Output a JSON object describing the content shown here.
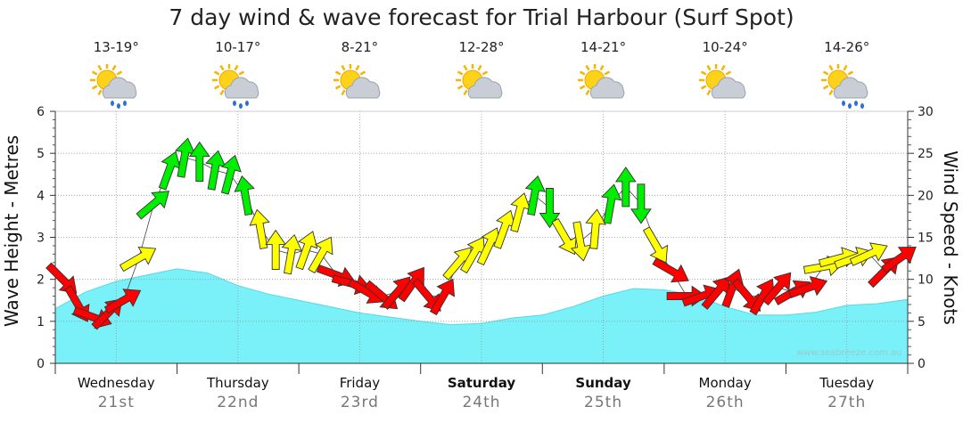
{
  "title": "7 day wind & wave forecast for Trial Harbour (Surf Spot)",
  "watermark": "www.seabreeze.com.au",
  "days": [
    {
      "day": "Wednesday",
      "date": "21st",
      "temp": "13-19°",
      "weather": "showers",
      "bold": false
    },
    {
      "day": "Thursday",
      "date": "22nd",
      "temp": "10-17°",
      "weather": "showers",
      "bold": false
    },
    {
      "day": "Friday",
      "date": "23rd",
      "temp": "8-21°",
      "weather": "partly-cloudy",
      "bold": false
    },
    {
      "day": "Saturday",
      "date": "24th",
      "temp": "12-28°",
      "weather": "partly-cloudy",
      "bold": true
    },
    {
      "day": "Sunday",
      "date": "25th",
      "temp": "14-21°",
      "weather": "partly-cloudy",
      "bold": true
    },
    {
      "day": "Monday",
      "date": "26th",
      "temp": "10-24°",
      "weather": "partly-cloudy",
      "bold": false
    },
    {
      "day": "Tuesday",
      "date": "27th",
      "temp": "14-26°",
      "weather": "rain",
      "bold": false
    }
  ],
  "chart_data": {
    "type": "area",
    "title": "7 day wind & wave forecast for Trial Harbour (Surf Spot)",
    "ylabel_left": "Wave Height - Metres",
    "ylabel_right": "Wind Speed - Knots",
    "ylim_left": [
      0,
      6
    ],
    "ylim_right": [
      0,
      30
    ],
    "yticks_left": [
      "0",
      "1",
      "2",
      "3",
      "4",
      "5",
      "6"
    ],
    "yticks_right": [
      "0",
      "5",
      "10",
      "15",
      "20",
      "25",
      "30"
    ],
    "x_range_days": [
      0,
      7
    ],
    "grid": true,
    "wave_color": "#7af0f8",
    "wind_colors": {
      "red": "#ff0000",
      "yellow": "#ffff00",
      "green": "#00ee00"
    },
    "wave_height": {
      "t": [
        0,
        0.25,
        0.5,
        0.75,
        1.0,
        1.25,
        1.5,
        1.75,
        2.0,
        2.25,
        2.5,
        2.75,
        3.0,
        3.25,
        3.5,
        3.75,
        4.0,
        4.25,
        4.5,
        4.75,
        5.0,
        5.25,
        5.5,
        5.75,
        6.0,
        6.25,
        6.5,
        6.75,
        7.0
      ],
      "m": [
        1.3,
        1.7,
        1.95,
        2.1,
        2.25,
        2.15,
        1.85,
        1.65,
        1.5,
        1.35,
        1.2,
        1.1,
        1.0,
        0.92,
        0.95,
        1.08,
        1.15,
        1.35,
        1.6,
        1.78,
        1.75,
        1.62,
        1.35,
        1.15,
        1.15,
        1.22,
        1.38,
        1.42,
        1.52
      ]
    },
    "wind": [
      {
        "t": 0.0,
        "kn": 10,
        "dir": 315,
        "color": "red"
      },
      {
        "t": 0.125,
        "kn": 7,
        "dir": 330,
        "color": "red"
      },
      {
        "t": 0.25,
        "kn": 5.5,
        "dir": 290,
        "color": "red"
      },
      {
        "t": 0.375,
        "kn": 6,
        "dir": 225,
        "color": "red"
      },
      {
        "t": 0.5,
        "kn": 7.5,
        "dir": 240,
        "color": "red"
      },
      {
        "t": 0.625,
        "kn": 12.5,
        "dir": 240,
        "color": "yellow"
      },
      {
        "t": 0.75,
        "kn": 19,
        "dir": 230,
        "color": "green"
      },
      {
        "t": 0.875,
        "kn": 23,
        "dir": 200,
        "color": "green"
      },
      {
        "t": 1.0,
        "kn": 24.5,
        "dir": 190,
        "color": "green"
      },
      {
        "t": 1.125,
        "kn": 24,
        "dir": 180,
        "color": "green"
      },
      {
        "t": 1.25,
        "kn": 23,
        "dir": 190,
        "color": "green"
      },
      {
        "t": 1.375,
        "kn": 22.5,
        "dir": 195,
        "color": "green"
      },
      {
        "t": 1.5,
        "kn": 20,
        "dir": 170,
        "color": "green"
      },
      {
        "t": 1.625,
        "kn": 16,
        "dir": 170,
        "color": "yellow"
      },
      {
        "t": 1.75,
        "kn": 13.5,
        "dir": 180,
        "color": "yellow"
      },
      {
        "t": 1.875,
        "kn": 13,
        "dir": 190,
        "color": "yellow"
      },
      {
        "t": 2.0,
        "kn": 13.5,
        "dir": 200,
        "color": "yellow"
      },
      {
        "t": 2.125,
        "kn": 13,
        "dir": 210,
        "color": "yellow"
      },
      {
        "t": 2.25,
        "kn": 10.5,
        "dir": 290,
        "color": "red"
      },
      {
        "t": 2.375,
        "kn": 9.5,
        "dir": 285,
        "color": "red"
      },
      {
        "t": 2.5,
        "kn": 8.5,
        "dir": 300,
        "color": "red"
      },
      {
        "t": 2.625,
        "kn": 8,
        "dir": 310,
        "color": "red"
      },
      {
        "t": 2.75,
        "kn": 8.5,
        "dir": 220,
        "color": "red"
      },
      {
        "t": 2.875,
        "kn": 9.5,
        "dir": 215,
        "color": "red"
      },
      {
        "t": 3.0,
        "kn": 8,
        "dir": 320,
        "color": "red"
      },
      {
        "t": 3.125,
        "kn": 8,
        "dir": 210,
        "color": "red"
      },
      {
        "t": 3.25,
        "kn": 12,
        "dir": 220,
        "color": "yellow"
      },
      {
        "t": 3.375,
        "kn": 13,
        "dir": 210,
        "color": "yellow"
      },
      {
        "t": 3.5,
        "kn": 14,
        "dir": 205,
        "color": "yellow"
      },
      {
        "t": 3.625,
        "kn": 16,
        "dir": 200,
        "color": "yellow"
      },
      {
        "t": 3.75,
        "kn": 18,
        "dir": 195,
        "color": "yellow"
      },
      {
        "t": 3.875,
        "kn": 20,
        "dir": 190,
        "color": "green"
      },
      {
        "t": 4.0,
        "kn": 18.5,
        "dir": 0,
        "color": "green"
      },
      {
        "t": 4.125,
        "kn": 15,
        "dir": 330,
        "color": "yellow"
      },
      {
        "t": 4.25,
        "kn": 14.5,
        "dir": 350,
        "color": "yellow"
      },
      {
        "t": 4.375,
        "kn": 16,
        "dir": 185,
        "color": "yellow"
      },
      {
        "t": 4.5,
        "kn": 19,
        "dir": 190,
        "color": "green"
      },
      {
        "t": 4.625,
        "kn": 21,
        "dir": 180,
        "color": "green"
      },
      {
        "t": 4.75,
        "kn": 19,
        "dir": 0,
        "color": "green"
      },
      {
        "t": 4.875,
        "kn": 14,
        "dir": 330,
        "color": "yellow"
      },
      {
        "t": 5.0,
        "kn": 11,
        "dir": 300,
        "color": "red"
      },
      {
        "t": 5.125,
        "kn": 8,
        "dir": 270,
        "color": "red"
      },
      {
        "t": 5.25,
        "kn": 8,
        "dir": 250,
        "color": "red"
      },
      {
        "t": 5.375,
        "kn": 8.5,
        "dir": 220,
        "color": "red"
      },
      {
        "t": 5.5,
        "kn": 9,
        "dir": 200,
        "color": "red"
      },
      {
        "t": 5.625,
        "kn": 8,
        "dir": 320,
        "color": "red"
      },
      {
        "t": 5.75,
        "kn": 8,
        "dir": 210,
        "color": "red"
      },
      {
        "t": 5.875,
        "kn": 9,
        "dir": 220,
        "color": "red"
      },
      {
        "t": 6.0,
        "kn": 8.5,
        "dir": 240,
        "color": "red"
      },
      {
        "t": 6.125,
        "kn": 9,
        "dir": 250,
        "color": "red"
      },
      {
        "t": 6.25,
        "kn": 11.5,
        "dir": 260,
        "color": "yellow"
      },
      {
        "t": 6.375,
        "kn": 12.5,
        "dir": 255,
        "color": "yellow"
      },
      {
        "t": 6.5,
        "kn": 12.5,
        "dir": 250,
        "color": "yellow"
      },
      {
        "t": 6.625,
        "kn": 13,
        "dir": 245,
        "color": "yellow"
      },
      {
        "t": 6.75,
        "kn": 11,
        "dir": 225,
        "color": "red"
      },
      {
        "t": 6.875,
        "kn": 12.5,
        "dir": 235,
        "color": "red"
      }
    ]
  }
}
